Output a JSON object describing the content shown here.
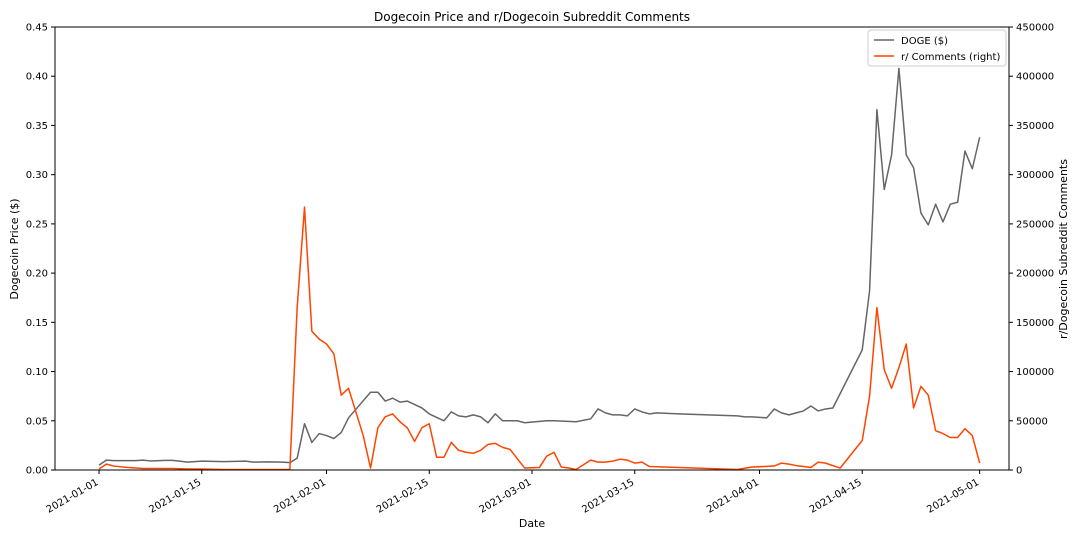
{
  "chart_data": {
    "type": "line",
    "title": "Dogecoin Price and r/Dogecoin Subreddit Comments",
    "xlabel": "Date",
    "ylabel_left": "Dogecoin Price ($)",
    "ylabel_right": "r/Dogecoin Subreddit Comments",
    "xlim": [
      "2020-12-26",
      "2021-05-05"
    ],
    "ylim_left": [
      0,
      0.45
    ],
    "ylim_right": [
      0,
      450000
    ],
    "x_ticks": [
      "2021-01-01",
      "2021-01-15",
      "2021-02-01",
      "2021-02-15",
      "2021-03-01",
      "2021-03-15",
      "2021-04-01",
      "2021-04-15",
      "2021-05-01"
    ],
    "y_ticks_left": [
      "0.00",
      "0.05",
      "0.10",
      "0.15",
      "0.20",
      "0.25",
      "0.30",
      "0.35",
      "0.40",
      "0.45"
    ],
    "y_ticks_right": [
      "0",
      "50000",
      "100000",
      "150000",
      "200000",
      "250000",
      "300000",
      "350000",
      "400000",
      "450000"
    ],
    "grid": false,
    "legend_position": "top-right",
    "series": [
      {
        "name": "DOGE ($)",
        "axis": "left",
        "color": "#666666",
        "points": [
          [
            "2021-01-01",
            0.005
          ],
          [
            "2021-01-02",
            0.01
          ],
          [
            "2021-01-03",
            0.0095
          ],
          [
            "2021-01-05",
            0.0095
          ],
          [
            "2021-01-06",
            0.0095
          ],
          [
            "2021-01-07",
            0.01
          ],
          [
            "2021-01-08",
            0.0092
          ],
          [
            "2021-01-10",
            0.0098
          ],
          [
            "2021-01-11",
            0.0098
          ],
          [
            "2021-01-12",
            0.009
          ],
          [
            "2021-01-13",
            0.008
          ],
          [
            "2021-01-15",
            0.009
          ],
          [
            "2021-01-18",
            0.0085
          ],
          [
            "2021-01-21",
            0.009
          ],
          [
            "2021-01-22",
            0.008
          ],
          [
            "2021-01-24",
            0.0082
          ],
          [
            "2021-01-26",
            0.008
          ],
          [
            "2021-01-27",
            0.0075
          ],
          [
            "2021-01-28",
            0.012
          ],
          [
            "2021-01-29",
            0.047
          ],
          [
            "2021-01-30",
            0.028
          ],
          [
            "2021-01-31",
            0.037
          ],
          [
            "2021-02-01",
            0.035
          ],
          [
            "2021-02-02",
            0.032
          ],
          [
            "2021-02-03",
            0.038
          ],
          [
            "2021-02-04",
            0.053
          ],
          [
            "2021-02-07",
            0.079
          ],
          [
            "2021-02-08",
            0.079
          ],
          [
            "2021-02-09",
            0.07
          ],
          [
            "2021-02-10",
            0.073
          ],
          [
            "2021-02-11",
            0.069
          ],
          [
            "2021-02-12",
            0.07
          ],
          [
            "2021-02-14",
            0.063
          ],
          [
            "2021-02-15",
            0.057
          ],
          [
            "2021-02-17",
            0.05
          ],
          [
            "2021-02-18",
            0.059
          ],
          [
            "2021-02-19",
            0.055
          ],
          [
            "2021-02-20",
            0.054
          ],
          [
            "2021-02-21",
            0.056
          ],
          [
            "2021-02-22",
            0.054
          ],
          [
            "2021-02-23",
            0.048
          ],
          [
            "2021-02-24",
            0.057
          ],
          [
            "2021-02-25",
            0.05
          ],
          [
            "2021-02-26",
            0.05
          ],
          [
            "2021-02-27",
            0.05
          ],
          [
            "2021-02-28",
            0.048
          ],
          [
            "2021-03-03",
            0.05
          ],
          [
            "2021-03-04",
            0.05
          ],
          [
            "2021-03-07",
            0.049
          ],
          [
            "2021-03-09",
            0.052
          ],
          [
            "2021-03-10",
            0.062
          ],
          [
            "2021-03-11",
            0.058
          ],
          [
            "2021-03-12",
            0.056
          ],
          [
            "2021-03-13",
            0.056
          ],
          [
            "2021-03-14",
            0.055
          ],
          [
            "2021-03-15",
            0.062
          ],
          [
            "2021-03-16",
            0.059
          ],
          [
            "2021-03-17",
            0.057
          ],
          [
            "2021-03-18",
            0.058
          ],
          [
            "2021-03-21",
            0.057
          ],
          [
            "2021-03-29",
            0.055
          ],
          [
            "2021-03-30",
            0.054
          ],
          [
            "2021-03-31",
            0.054
          ],
          [
            "2021-04-02",
            0.053
          ],
          [
            "2021-04-03",
            0.062
          ],
          [
            "2021-04-04",
            0.058
          ],
          [
            "2021-04-05",
            0.056
          ],
          [
            "2021-04-06",
            0.058
          ],
          [
            "2021-04-07",
            0.06
          ],
          [
            "2021-04-08",
            0.065
          ],
          [
            "2021-04-09",
            0.06
          ],
          [
            "2021-04-10",
            0.062
          ],
          [
            "2021-04-11",
            0.063
          ],
          [
            "2021-04-15",
            0.122
          ],
          [
            "2021-04-16",
            0.182
          ],
          [
            "2021-04-17",
            0.366
          ],
          [
            "2021-04-18",
            0.285
          ],
          [
            "2021-04-19",
            0.32
          ],
          [
            "2021-04-20",
            0.408
          ],
          [
            "2021-04-21",
            0.32
          ],
          [
            "2021-04-22",
            0.307
          ],
          [
            "2021-04-23",
            0.261
          ],
          [
            "2021-04-24",
            0.249
          ],
          [
            "2021-04-25",
            0.27
          ],
          [
            "2021-04-26",
            0.252
          ],
          [
            "2021-04-27",
            0.27
          ],
          [
            "2021-04-28",
            0.272
          ],
          [
            "2021-04-29",
            0.324
          ],
          [
            "2021-04-30",
            0.306
          ],
          [
            "2021-05-01",
            0.338
          ]
        ]
      },
      {
        "name": "r/ Comments (right)",
        "axis": "right",
        "color": "#ff4500",
        "points": [
          [
            "2021-01-01",
            1000
          ],
          [
            "2021-01-02",
            6000
          ],
          [
            "2021-01-03",
            4000
          ],
          [
            "2021-01-05",
            2500
          ],
          [
            "2021-01-06",
            2000
          ],
          [
            "2021-01-07",
            1500
          ],
          [
            "2021-01-09",
            1500
          ],
          [
            "2021-01-11",
            1500
          ],
          [
            "2021-01-13",
            1000
          ],
          [
            "2021-01-15",
            1000
          ],
          [
            "2021-01-18",
            500
          ],
          [
            "2021-01-22",
            500
          ],
          [
            "2021-01-24",
            500
          ],
          [
            "2021-01-27",
            500
          ],
          [
            "2021-01-28",
            165000
          ],
          [
            "2021-01-29",
            267000
          ],
          [
            "2021-01-30",
            141000
          ],
          [
            "2021-01-31",
            133000
          ],
          [
            "2021-02-01",
            128000
          ],
          [
            "2021-02-02",
            118000
          ],
          [
            "2021-02-03",
            76000
          ],
          [
            "2021-02-04",
            83000
          ],
          [
            "2021-02-06",
            35000
          ],
          [
            "2021-02-07",
            2000
          ],
          [
            "2021-02-08",
            43000
          ],
          [
            "2021-02-09",
            54000
          ],
          [
            "2021-02-10",
            57000
          ],
          [
            "2021-02-11",
            49000
          ],
          [
            "2021-02-12",
            43000
          ],
          [
            "2021-02-13",
            29000
          ],
          [
            "2021-02-14",
            43000
          ],
          [
            "2021-02-15",
            47000
          ],
          [
            "2021-02-16",
            13000
          ],
          [
            "2021-02-17",
            13000
          ],
          [
            "2021-02-18",
            28000
          ],
          [
            "2021-02-19",
            20000
          ],
          [
            "2021-02-20",
            18000
          ],
          [
            "2021-02-21",
            17000
          ],
          [
            "2021-02-22",
            20000
          ],
          [
            "2021-02-23",
            26000
          ],
          [
            "2021-02-24",
            27000
          ],
          [
            "2021-02-25",
            23000
          ],
          [
            "2021-02-26",
            21000
          ],
          [
            "2021-02-28",
            2000
          ],
          [
            "2021-03-02",
            2500
          ],
          [
            "2021-03-03",
            14000
          ],
          [
            "2021-03-04",
            18000
          ],
          [
            "2021-03-05",
            3000
          ],
          [
            "2021-03-06",
            2000
          ],
          [
            "2021-03-07",
            500
          ],
          [
            "2021-03-09",
            10000
          ],
          [
            "2021-03-10",
            8000
          ],
          [
            "2021-03-11",
            8000
          ],
          [
            "2021-03-12",
            9000
          ],
          [
            "2021-03-13",
            11000
          ],
          [
            "2021-03-14",
            10000
          ],
          [
            "2021-03-15",
            7000
          ],
          [
            "2021-03-16",
            8000
          ],
          [
            "2021-03-17",
            3500
          ],
          [
            "2021-03-21",
            2500
          ],
          [
            "2021-03-29",
            500
          ],
          [
            "2021-03-31",
            3000
          ],
          [
            "2021-04-03",
            4000
          ],
          [
            "2021-04-04",
            7000
          ],
          [
            "2021-04-05",
            6000
          ],
          [
            "2021-04-06",
            4500
          ],
          [
            "2021-04-07",
            3500
          ],
          [
            "2021-04-08",
            2500
          ],
          [
            "2021-04-09",
            8000
          ],
          [
            "2021-04-10",
            7000
          ],
          [
            "2021-04-12",
            2000
          ],
          [
            "2021-04-15",
            30000
          ],
          [
            "2021-04-16",
            75000
          ],
          [
            "2021-04-17",
            165000
          ],
          [
            "2021-04-18",
            102000
          ],
          [
            "2021-04-19",
            83000
          ],
          [
            "2021-04-20",
            104000
          ],
          [
            "2021-04-21",
            128000
          ],
          [
            "2021-04-22",
            63000
          ],
          [
            "2021-04-23",
            85000
          ],
          [
            "2021-04-24",
            76000
          ],
          [
            "2021-04-25",
            40000
          ],
          [
            "2021-04-26",
            37000
          ],
          [
            "2021-04-27",
            33000
          ],
          [
            "2021-04-28",
            33000
          ],
          [
            "2021-04-29",
            42000
          ],
          [
            "2021-04-30",
            35000
          ],
          [
            "2021-05-01",
            7000
          ]
        ]
      }
    ]
  }
}
